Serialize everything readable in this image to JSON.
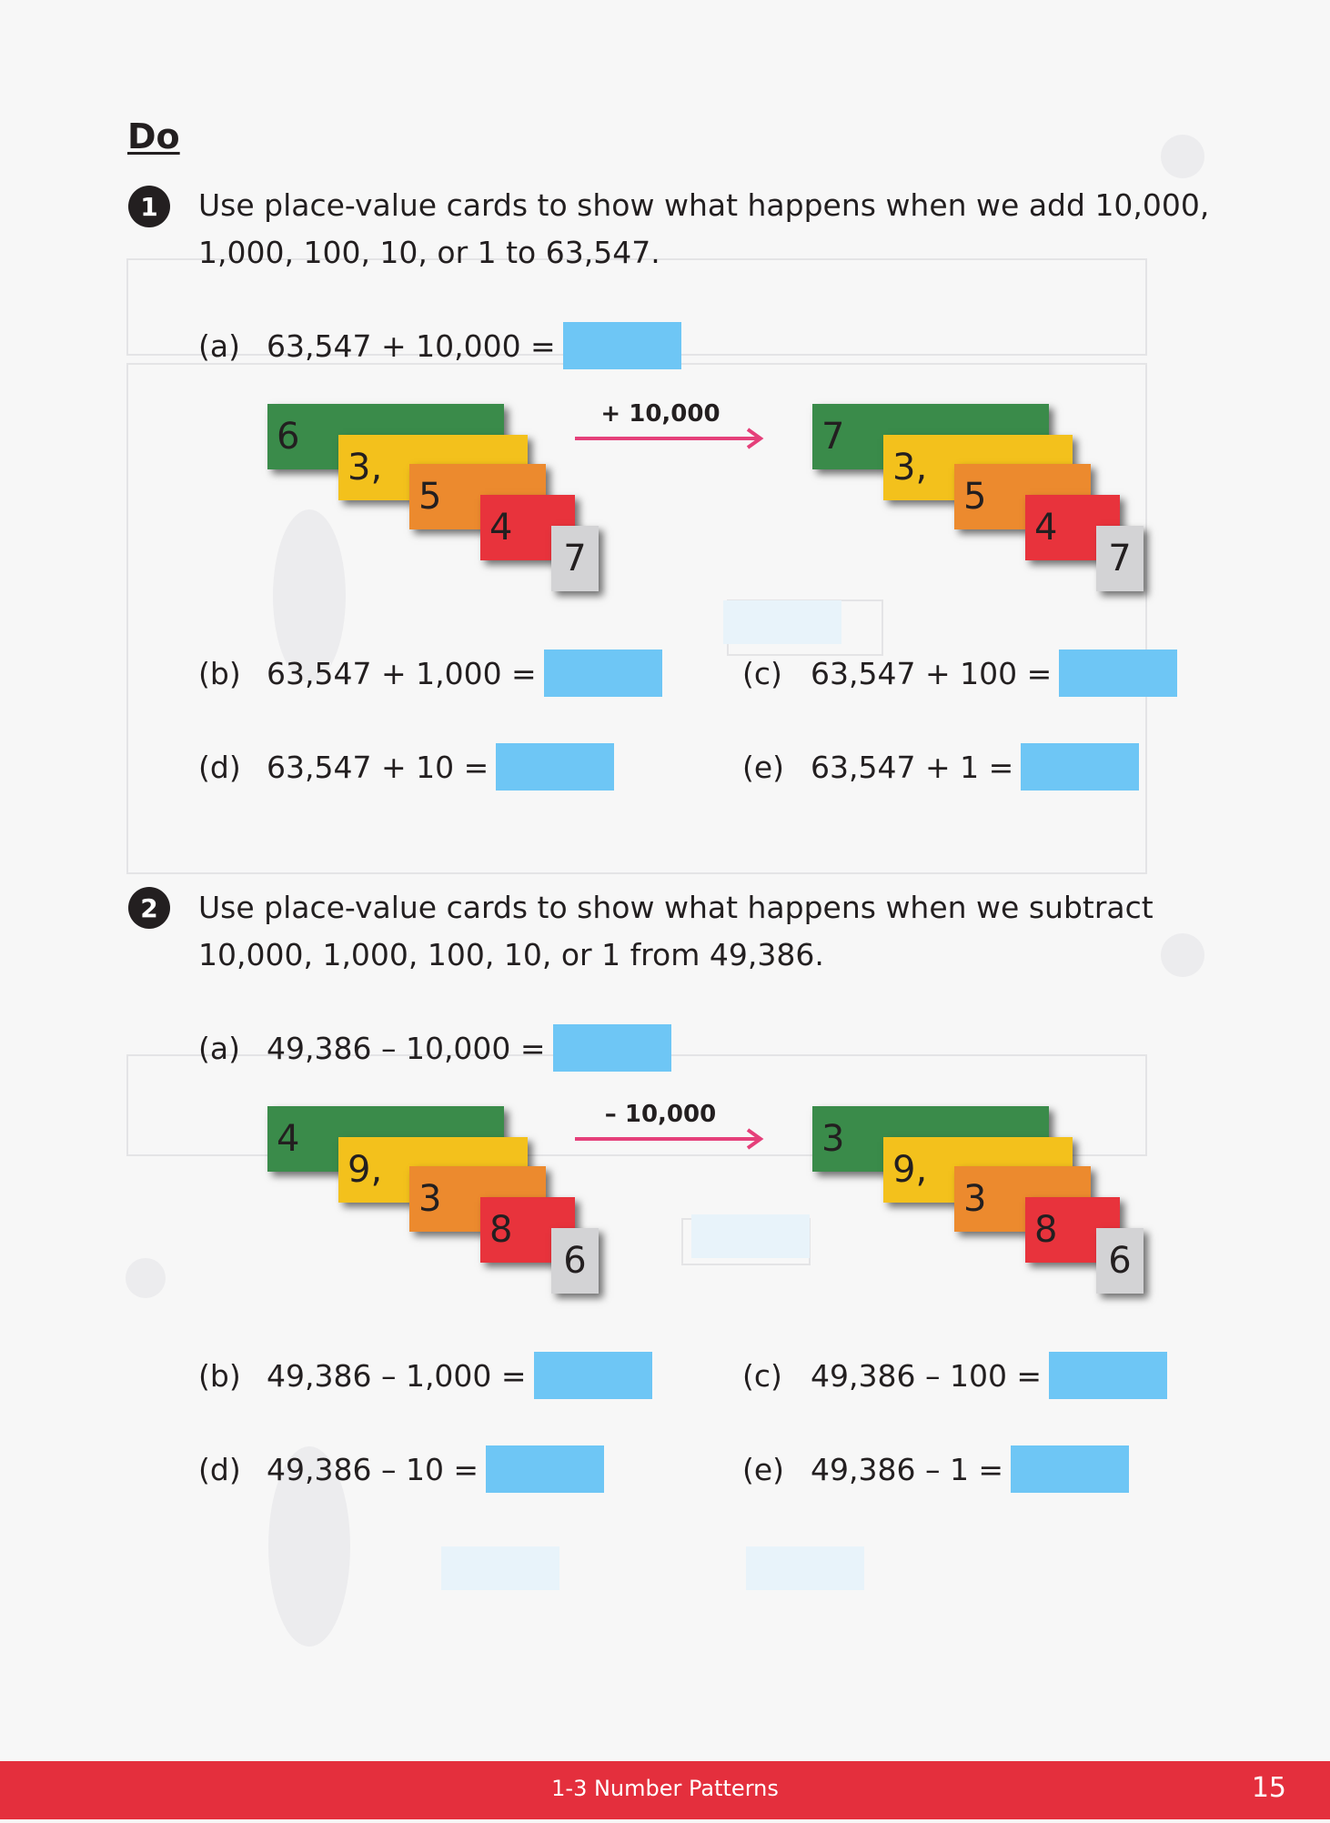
{
  "heading": "Do",
  "questions": [
    {
      "number": "1",
      "text_lines": [
        "Use place-value cards to show what happens when we add 10,000,",
        "1,000, 100, 10, or 1 to 63,547."
      ],
      "parts": [
        {
          "label": "(a)",
          "expr": "63,547 + 10,000 ="
        },
        {
          "label": "(b)",
          "expr": "63,547 + 1,000 ="
        },
        {
          "label": "(c)",
          "expr": "63,547 + 100 ="
        },
        {
          "label": "(d)",
          "expr": "63,547 + 10 ="
        },
        {
          "label": "(e)",
          "expr": "63,547 + 1 ="
        }
      ],
      "operation": "+ 10,000",
      "cards_before": [
        "6",
        "3,",
        "5",
        "4",
        "7"
      ],
      "cards_after": [
        "7",
        "3,",
        "5",
        "4",
        "7"
      ]
    },
    {
      "number": "2",
      "text_lines": [
        "Use place-value cards to show what happens when we subtract",
        "10,000, 1,000, 100, 10, or 1 from 49,386."
      ],
      "parts": [
        {
          "label": "(a)",
          "expr": "49,386 – 10,000 ="
        },
        {
          "label": "(b)",
          "expr": "49,386 – 1,000 ="
        },
        {
          "label": "(c)",
          "expr": "49,386 – 100 ="
        },
        {
          "label": "(d)",
          "expr": "49,386 – 10 ="
        },
        {
          "label": "(e)",
          "expr": "49,386 – 1 ="
        }
      ],
      "operation": "– 10,000",
      "cards_before": [
        "4",
        "9,",
        "3",
        "8",
        "6"
      ],
      "cards_after": [
        "3",
        "9,",
        "3",
        "8",
        "6"
      ]
    }
  ],
  "footer": {
    "title": "1-3 Number Patterns",
    "page_number": "15"
  },
  "colors": {
    "answer_box": "#6ec6f5",
    "card_ten_thousands": "#3a8b4a",
    "card_thousands": "#f3c11c",
    "card_hundreds": "#ec8a2e",
    "card_tens": "#e8333c",
    "card_ones": "#d3d3d5",
    "arrow": "#e5407a",
    "footer": "#e42f3d"
  }
}
